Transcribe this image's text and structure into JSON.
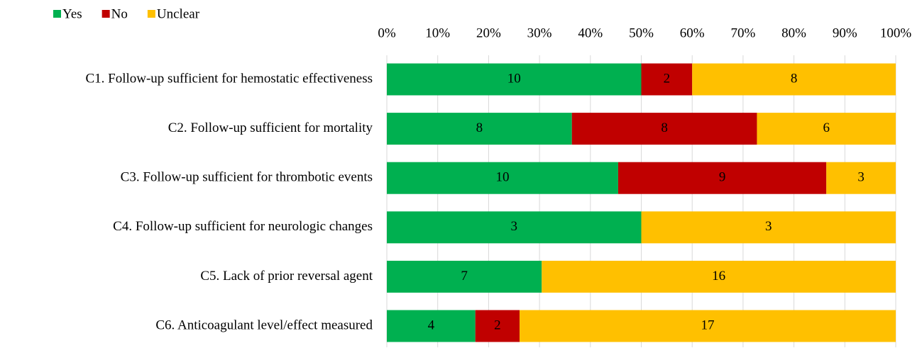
{
  "chart_data": {
    "type": "bar",
    "orientation": "horizontal",
    "stack": "percent",
    "categories": [
      "C1. Follow-up sufficient for hemostatic effectiveness",
      "C2. Follow-up sufficient for mortality",
      "C3. Follow-up sufficient for thrombotic events",
      "C4. Follow-up sufficient for neurologic changes",
      "C5. Lack of prior reversal agent",
      "C6. Anticoagulant level/effect measured"
    ],
    "series": [
      {
        "name": "Yes",
        "color": "#00b050",
        "values": [
          10,
          8,
          10,
          3,
          7,
          4
        ]
      },
      {
        "name": "No",
        "color": "#c00000",
        "values": [
          2,
          8,
          9,
          null,
          null,
          2
        ]
      },
      {
        "name": "Unclear",
        "color": "#ffc000",
        "values": [
          8,
          6,
          3,
          3,
          16,
          17
        ]
      }
    ],
    "xlim": [
      0,
      100
    ],
    "xticks": [
      {
        "value": 0,
        "label": "0%"
      },
      {
        "value": 10,
        "label": "10%"
      },
      {
        "value": 20,
        "label": "20%"
      },
      {
        "value": 30,
        "label": "30%"
      },
      {
        "value": 40,
        "label": "40%"
      },
      {
        "value": 50,
        "label": "50%"
      },
      {
        "value": 60,
        "label": "60%"
      },
      {
        "value": 70,
        "label": "70%"
      },
      {
        "value": 80,
        "label": "80%"
      },
      {
        "value": 90,
        "label": "90%"
      },
      {
        "value": 100,
        "label": "100%"
      }
    ],
    "grid": true,
    "legend": "top-left"
  }
}
